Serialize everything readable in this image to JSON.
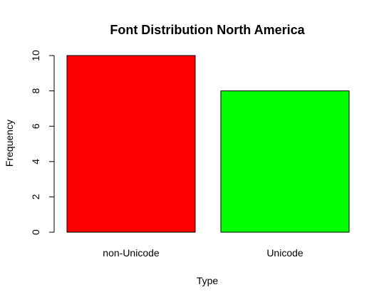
{
  "chart_data": {
    "type": "bar",
    "title": "Font Distribution North America",
    "xlabel": "Type",
    "ylabel": "Frequency",
    "categories": [
      "non-Unicode",
      "Unicode"
    ],
    "values": [
      10,
      8
    ],
    "colors": [
      "#ff0000",
      "#00ff00"
    ],
    "ylim": [
      0,
      10
    ],
    "yticks": [
      0,
      2,
      4,
      6,
      8,
      10
    ],
    "ytick_labels": [
      "0",
      "2",
      "4",
      "6",
      "8",
      "10"
    ],
    "grid": false,
    "legend": "none"
  }
}
